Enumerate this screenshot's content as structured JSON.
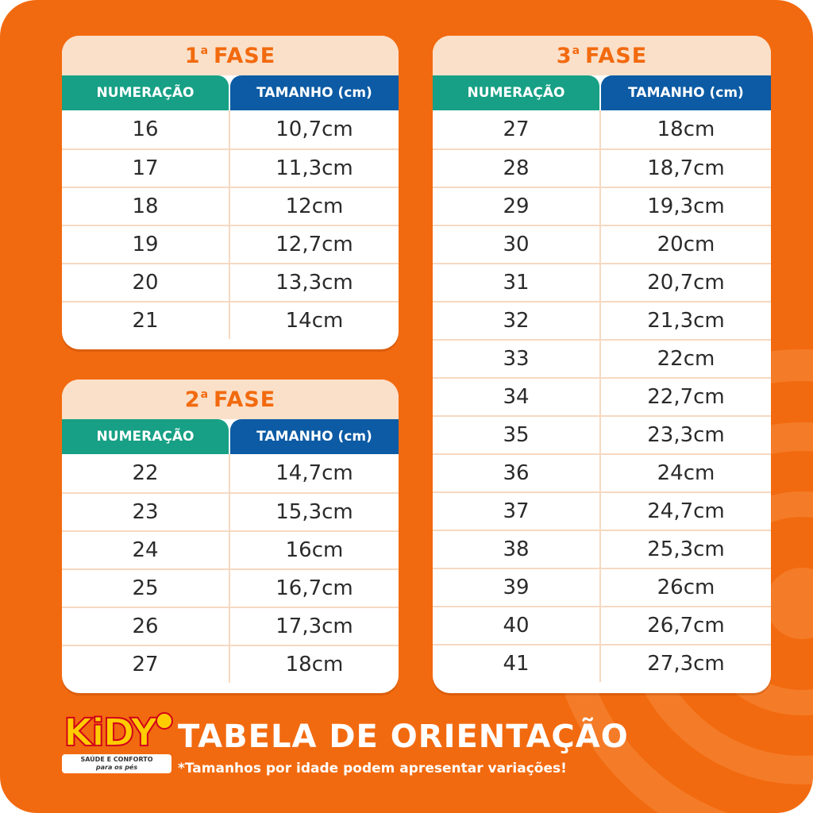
{
  "colors": {
    "background": "#f26a0f",
    "title_band": "#fbe0c9",
    "title_text": "#f26a0f",
    "head_num": "#17a085",
    "head_size": "#0c5ba4"
  },
  "tables": {
    "phase1": {
      "title_num": "1",
      "title_sup": "a",
      "title_text": "FASE",
      "col_num": "NUMERAÇÃO",
      "col_size": "TAMANHO (cm)",
      "rows": [
        {
          "num": "16",
          "size": "10,7cm"
        },
        {
          "num": "17",
          "size": "11,3cm"
        },
        {
          "num": "18",
          "size": "12cm"
        },
        {
          "num": "19",
          "size": "12,7cm"
        },
        {
          "num": "20",
          "size": "13,3cm"
        },
        {
          "num": "21",
          "size": "14cm"
        }
      ]
    },
    "phase2": {
      "title_num": "2",
      "title_sup": "a",
      "title_text": "FASE",
      "col_num": "NUMERAÇÃO",
      "col_size": "TAMANHO (cm)",
      "rows": [
        {
          "num": "22",
          "size": "14,7cm"
        },
        {
          "num": "23",
          "size": "15,3cm"
        },
        {
          "num": "24",
          "size": "16cm"
        },
        {
          "num": "25",
          "size": "16,7cm"
        },
        {
          "num": "26",
          "size": "17,3cm"
        },
        {
          "num": "27",
          "size": "18cm"
        }
      ]
    },
    "phase3": {
      "title_num": "3",
      "title_sup": "a",
      "title_text": "FASE",
      "col_num": "NUMERAÇÃO",
      "col_size": "TAMANHO (cm)",
      "rows": [
        {
          "num": "27",
          "size": "18cm"
        },
        {
          "num": "28",
          "size": "18,7cm"
        },
        {
          "num": "29",
          "size": "19,3cm"
        },
        {
          "num": "30",
          "size": "20cm"
        },
        {
          "num": "31",
          "size": "20,7cm"
        },
        {
          "num": "32",
          "size": "21,3cm"
        },
        {
          "num": "33",
          "size": "22cm"
        },
        {
          "num": "34",
          "size": "22,7cm"
        },
        {
          "num": "35",
          "size": "23,3cm"
        },
        {
          "num": "36",
          "size": "24cm"
        },
        {
          "num": "37",
          "size": "24,7cm"
        },
        {
          "num": "38",
          "size": "25,3cm"
        },
        {
          "num": "39",
          "size": "26cm"
        },
        {
          "num": "40",
          "size": "26,7cm"
        },
        {
          "num": "41",
          "size": "27,3cm"
        }
      ]
    }
  },
  "footer": {
    "title": "TABELA DE ORIENTAÇÃO",
    "note": "*Tamanhos por idade podem apresentar variações!"
  },
  "logo": {
    "brand": "KiDY",
    "tagline_1": "SAÚDE E CONFORTO",
    "tagline_2": "para os pés"
  }
}
